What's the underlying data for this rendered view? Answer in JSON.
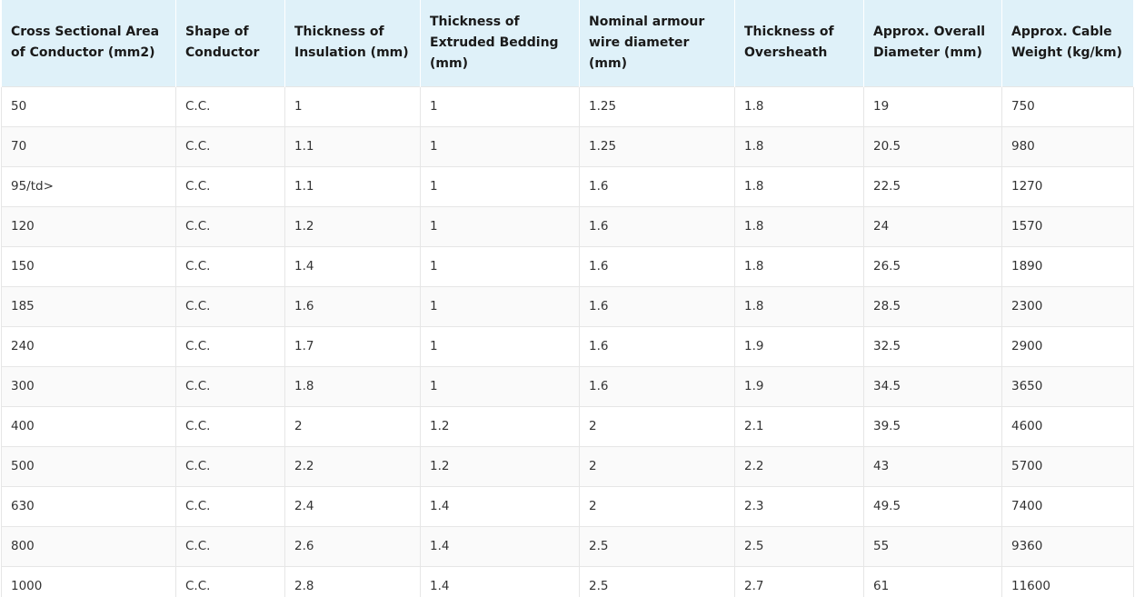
{
  "table": {
    "headers": [
      "Cross Sectional Area of Conductor (mm2)",
      "Shape of Conductor",
      "Thickness of Insulation (mm)",
      "Thickness of Extruded Bedding (mm)",
      "Nominal armour wire diameter (mm)",
      "Thickness of Oversheath",
      "Approx. Overall Diameter (mm)",
      "Approx. Cable Weight (kg/km)"
    ],
    "rows": [
      [
        "50",
        "C.C.",
        "1",
        "1",
        "1.25",
        "1.8",
        "19",
        "750"
      ],
      [
        "70",
        "C.C.",
        "1.1",
        "1",
        "1.25",
        "1.8",
        "20.5",
        "980"
      ],
      [
        "95/td>",
        "C.C.",
        "1.1",
        "1",
        "1.6",
        "1.8",
        "22.5",
        "1270"
      ],
      [
        "120",
        "C.C.",
        "1.2",
        "1",
        "1.6",
        "1.8",
        "24",
        "1570"
      ],
      [
        "150",
        "C.C.",
        "1.4",
        "1",
        "1.6",
        "1.8",
        "26.5",
        "1890"
      ],
      [
        "185",
        "C.C.",
        "1.6",
        "1",
        "1.6",
        "1.8",
        "28.5",
        "2300"
      ],
      [
        "240",
        "C.C.",
        "1.7",
        "1",
        "1.6",
        "1.9",
        "32.5",
        "2900"
      ],
      [
        "300",
        "C.C.",
        "1.8",
        "1",
        "1.6",
        "1.9",
        "34.5",
        "3650"
      ],
      [
        "400",
        "C.C.",
        "2",
        "1.2",
        "2",
        "2.1",
        "39.5",
        "4600"
      ],
      [
        "500",
        "C.C.",
        "2.2",
        "1.2",
        "2",
        "2.2",
        "43",
        "5700"
      ],
      [
        "630",
        "C.C.",
        "2.4",
        "1.4",
        "2",
        "2.3",
        "49.5",
        "7400"
      ],
      [
        "800",
        "C.C.",
        "2.6",
        "1.4",
        "2.5",
        "2.5",
        "55",
        "9360"
      ],
      [
        "1000",
        "C.C.",
        "2.8",
        "1.4",
        "2.5",
        "2.7",
        "61",
        "11600"
      ]
    ]
  },
  "colors": {
    "header_background": "#dff1f9",
    "header_text": "#1a1a1a",
    "cell_text": "#333333",
    "border": "#e6e6e6",
    "alt_row": "#fafafa"
  }
}
